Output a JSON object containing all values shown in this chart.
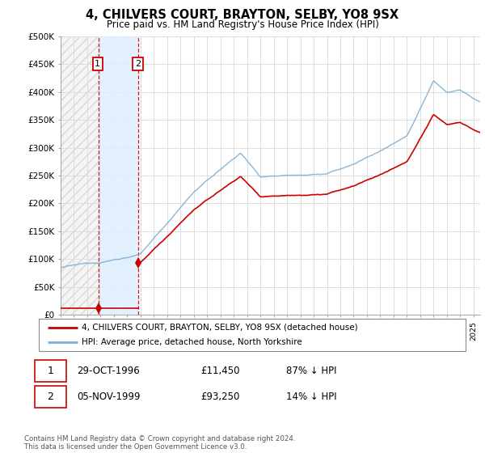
{
  "title": "4, CHILVERS COURT, BRAYTON, SELBY, YO8 9SX",
  "subtitle": "Price paid vs. HM Land Registry's House Price Index (HPI)",
  "ylabel_ticks": [
    "£0",
    "£50K",
    "£100K",
    "£150K",
    "£200K",
    "£250K",
    "£300K",
    "£350K",
    "£400K",
    "£450K",
    "£500K"
  ],
  "ylim": [
    0,
    500000
  ],
  "xlim_start": 1994.0,
  "xlim_end": 2025.5,
  "sale1_x": 1996.83,
  "sale1_y": 11450,
  "sale2_x": 1999.84,
  "sale2_y": 93250,
  "sale1_label": "1",
  "sale2_label": "2",
  "sale1_date": "29-OCT-1996",
  "sale1_price": "£11,450",
  "sale1_hpi": "87% ↓ HPI",
  "sale2_date": "05-NOV-1999",
  "sale2_price": "£93,250",
  "sale2_hpi": "14% ↓ HPI",
  "house_line_color": "#cc0000",
  "hpi_line_color": "#7bafd4",
  "legend_house_label": "4, CHILVERS COURT, BRAYTON, SELBY, YO8 9SX (detached house)",
  "legend_hpi_label": "HPI: Average price, detached house, North Yorkshire",
  "footer": "Contains HM Land Registry data © Crown copyright and database right 2024.\nThis data is licensed under the Open Government Licence v3.0.",
  "shade_color": "#ddeeff",
  "hatch_color": "#cccccc"
}
